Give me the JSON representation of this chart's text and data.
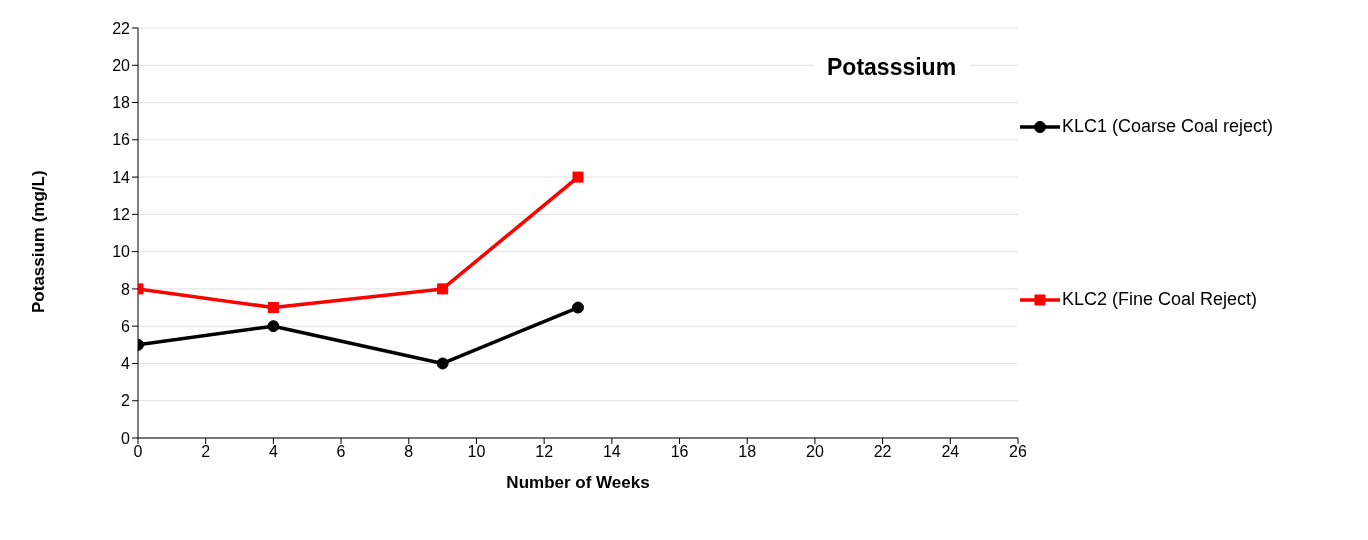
{
  "chart_data": {
    "type": "line",
    "title": "Potasssium",
    "xlabel": "Number of Weeks",
    "ylabel": "Potassium (mg/L)",
    "xlim": [
      0,
      26
    ],
    "xticks": [
      0,
      2,
      4,
      6,
      8,
      10,
      12,
      14,
      16,
      18,
      20,
      22,
      24,
      26
    ],
    "ylim": [
      0,
      22
    ],
    "yticks": [
      0,
      2,
      4,
      6,
      8,
      10,
      12,
      14,
      16,
      18,
      20,
      22
    ],
    "grid": "y",
    "legend": "right",
    "line_style": "solid",
    "series": [
      {
        "name": "KLC1 (Coarse Coal reject)",
        "color": "#000000",
        "marker": "circle",
        "x": [
          0,
          4,
          9,
          13
        ],
        "values": [
          5,
          6,
          4,
          7
        ]
      },
      {
        "name": "KLC2 (Fine Coal Reject)",
        "color": "#ff0000",
        "marker": "square",
        "x": [
          0,
          4,
          9,
          13
        ],
        "values": [
          8,
          7,
          8,
          14
        ]
      }
    ]
  }
}
